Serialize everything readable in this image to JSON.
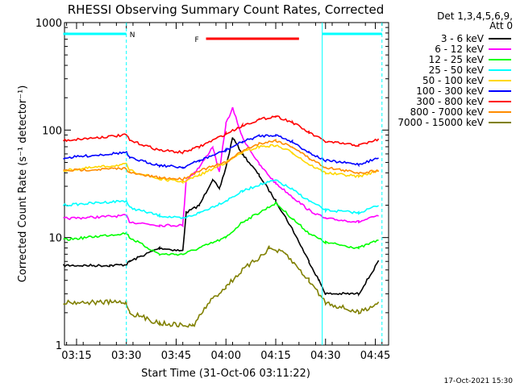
{
  "chart_data": {
    "type": "line",
    "title": "RHESSI Observing Summary Count Rates, Corrected",
    "xlabel": "Start Time (31-Oct-06 03:11:22)",
    "ylabel": "Corrected Count Rate (s⁻¹ detector⁻¹)",
    "y_scale": "log",
    "ylim": [
      1,
      1000
    ],
    "xlim": [
      "03:11:22",
      "04:49:00"
    ],
    "x_ticks": [
      "03:15",
      "03:30",
      "03:45",
      "04:00",
      "04:15",
      "04:30",
      "04:45"
    ],
    "y_ticks": [
      "1",
      "10",
      "100",
      "1000"
    ],
    "legend_header": [
      "Det 1,3,4,5,6,9,",
      "Att 0"
    ],
    "legend_position": "right",
    "series": [
      {
        "name": "3 - 6 keV",
        "color": "#000000",
        "x": [
          "03:11",
          "03:25",
          "03:30",
          "03:31",
          "03:40",
          "03:47",
          "03:48",
          "03:52",
          "03:56",
          "03:58",
          "04:00",
          "04:02",
          "04:05",
          "04:10",
          "04:15",
          "04:20",
          "04:25",
          "04:28",
          "04:30",
          "04:40",
          "04:46"
        ],
        "y": [
          5.5,
          5.5,
          5.6,
          6.0,
          8.0,
          7.5,
          17,
          20,
          35,
          28,
          45,
          85,
          60,
          38,
          22,
          12,
          6,
          4,
          3,
          3,
          6
        ]
      },
      {
        "name": "6 - 12 keV",
        "color": "#ff00ff",
        "x": [
          "03:11",
          "03:30",
          "03:31",
          "03:40",
          "03:47",
          "03:48",
          "03:52",
          "03:56",
          "03:58",
          "04:00",
          "04:02",
          "04:05",
          "04:10",
          "04:15",
          "04:20",
          "04:25",
          "04:30",
          "04:40",
          "04:46"
        ],
        "y": [
          15,
          16,
          14,
          13,
          13,
          34,
          45,
          70,
          40,
          115,
          160,
          85,
          48,
          32,
          24,
          18,
          15,
          14,
          16
        ]
      },
      {
        "name": "12 - 25 keV",
        "color": "#00ff00",
        "x": [
          "03:11",
          "03:30",
          "03:31",
          "03:40",
          "03:47",
          "03:52",
          "04:00",
          "04:05",
          "04:10",
          "04:15",
          "04:20",
          "04:25",
          "04:30",
          "04:40",
          "04:46"
        ],
        "y": [
          9.5,
          11,
          10,
          7,
          7,
          8,
          10,
          14,
          17,
          21,
          15,
          11,
          9,
          8,
          9.5
        ]
      },
      {
        "name": "25 - 50 keV",
        "color": "#00ffff",
        "x": [
          "03:11",
          "03:30",
          "03:31",
          "03:40",
          "03:47",
          "03:52",
          "04:00",
          "04:05",
          "04:10",
          "04:15",
          "04:20",
          "04:25",
          "04:30",
          "04:40",
          "04:46"
        ],
        "y": [
          20,
          22,
          19,
          16,
          15,
          17,
          22,
          27,
          31,
          34,
          28,
          22,
          18,
          17,
          20
        ]
      },
      {
        "name": "50 - 100 keV",
        "color": "#ffd700",
        "x": [
          "03:11",
          "03:30",
          "03:31",
          "03:40",
          "03:47",
          "03:52",
          "04:00",
          "04:05",
          "04:10",
          "04:15",
          "04:20",
          "04:25",
          "04:30",
          "04:40",
          "04:46"
        ],
        "y": [
          42,
          48,
          42,
          35,
          33,
          38,
          50,
          62,
          70,
          72,
          62,
          48,
          40,
          37,
          42
        ]
      },
      {
        "name": "100 - 300 keV",
        "color": "#0000ff",
        "x": [
          "03:11",
          "03:30",
          "03:31",
          "03:40",
          "03:47",
          "03:52",
          "04:00",
          "04:05",
          "04:10",
          "04:15",
          "04:20",
          "04:25",
          "04:30",
          "04:40",
          "04:46"
        ],
        "y": [
          55,
          62,
          55,
          47,
          45,
          52,
          65,
          78,
          88,
          90,
          78,
          62,
          52,
          48,
          55
        ]
      },
      {
        "name": "300 - 800 keV",
        "color": "#ff0000",
        "x": [
          "03:11",
          "03:30",
          "03:31",
          "03:40",
          "03:47",
          "03:52",
          "04:00",
          "04:05",
          "04:10",
          "04:15",
          "04:20",
          "04:25",
          "04:30",
          "04:40",
          "04:46"
        ],
        "y": [
          80,
          90,
          80,
          65,
          62,
          70,
          92,
          110,
          125,
          135,
          118,
          95,
          78,
          72,
          82
        ]
      },
      {
        "name": "800 - 7000 keV",
        "color": "#ff8c00",
        "x": [
          "03:11",
          "03:30",
          "03:31",
          "03:40",
          "03:47",
          "03:52",
          "04:00",
          "04:05",
          "04:10",
          "04:15",
          "04:20",
          "04:25",
          "04:30",
          "04:40",
          "04:46"
        ],
        "y": [
          42,
          44,
          40,
          36,
          35,
          42,
          50,
          64,
          75,
          80,
          70,
          55,
          45,
          40,
          42
        ]
      },
      {
        "name": "7000 - 15000 keV",
        "color": "#808000",
        "x": [
          "03:11",
          "03:30",
          "03:31",
          "03:40",
          "03:50",
          "03:55",
          "04:00",
          "04:05",
          "04:10",
          "04:13",
          "04:18",
          "04:25",
          "04:30",
          "04:40",
          "04:46"
        ],
        "y": [
          2.5,
          2.5,
          2.0,
          1.6,
          1.5,
          2.5,
          3.5,
          5,
          6.5,
          8,
          7,
          4,
          2.5,
          2,
          2.5
        ]
      }
    ],
    "annotations": [
      {
        "text": "N",
        "type": "night",
        "color": "#00ffff",
        "x_range": [
          "03:11",
          "03:30"
        ]
      },
      {
        "type": "night",
        "color": "#00ffff",
        "x_range": [
          "04:29",
          "04:47"
        ]
      },
      {
        "text": "F",
        "type": "flare",
        "color": "#ff0000",
        "x_range": [
          "03:54",
          "04:22"
        ]
      }
    ]
  },
  "footer": {
    "timestamp": "17-Oct-2021 15:30"
  }
}
